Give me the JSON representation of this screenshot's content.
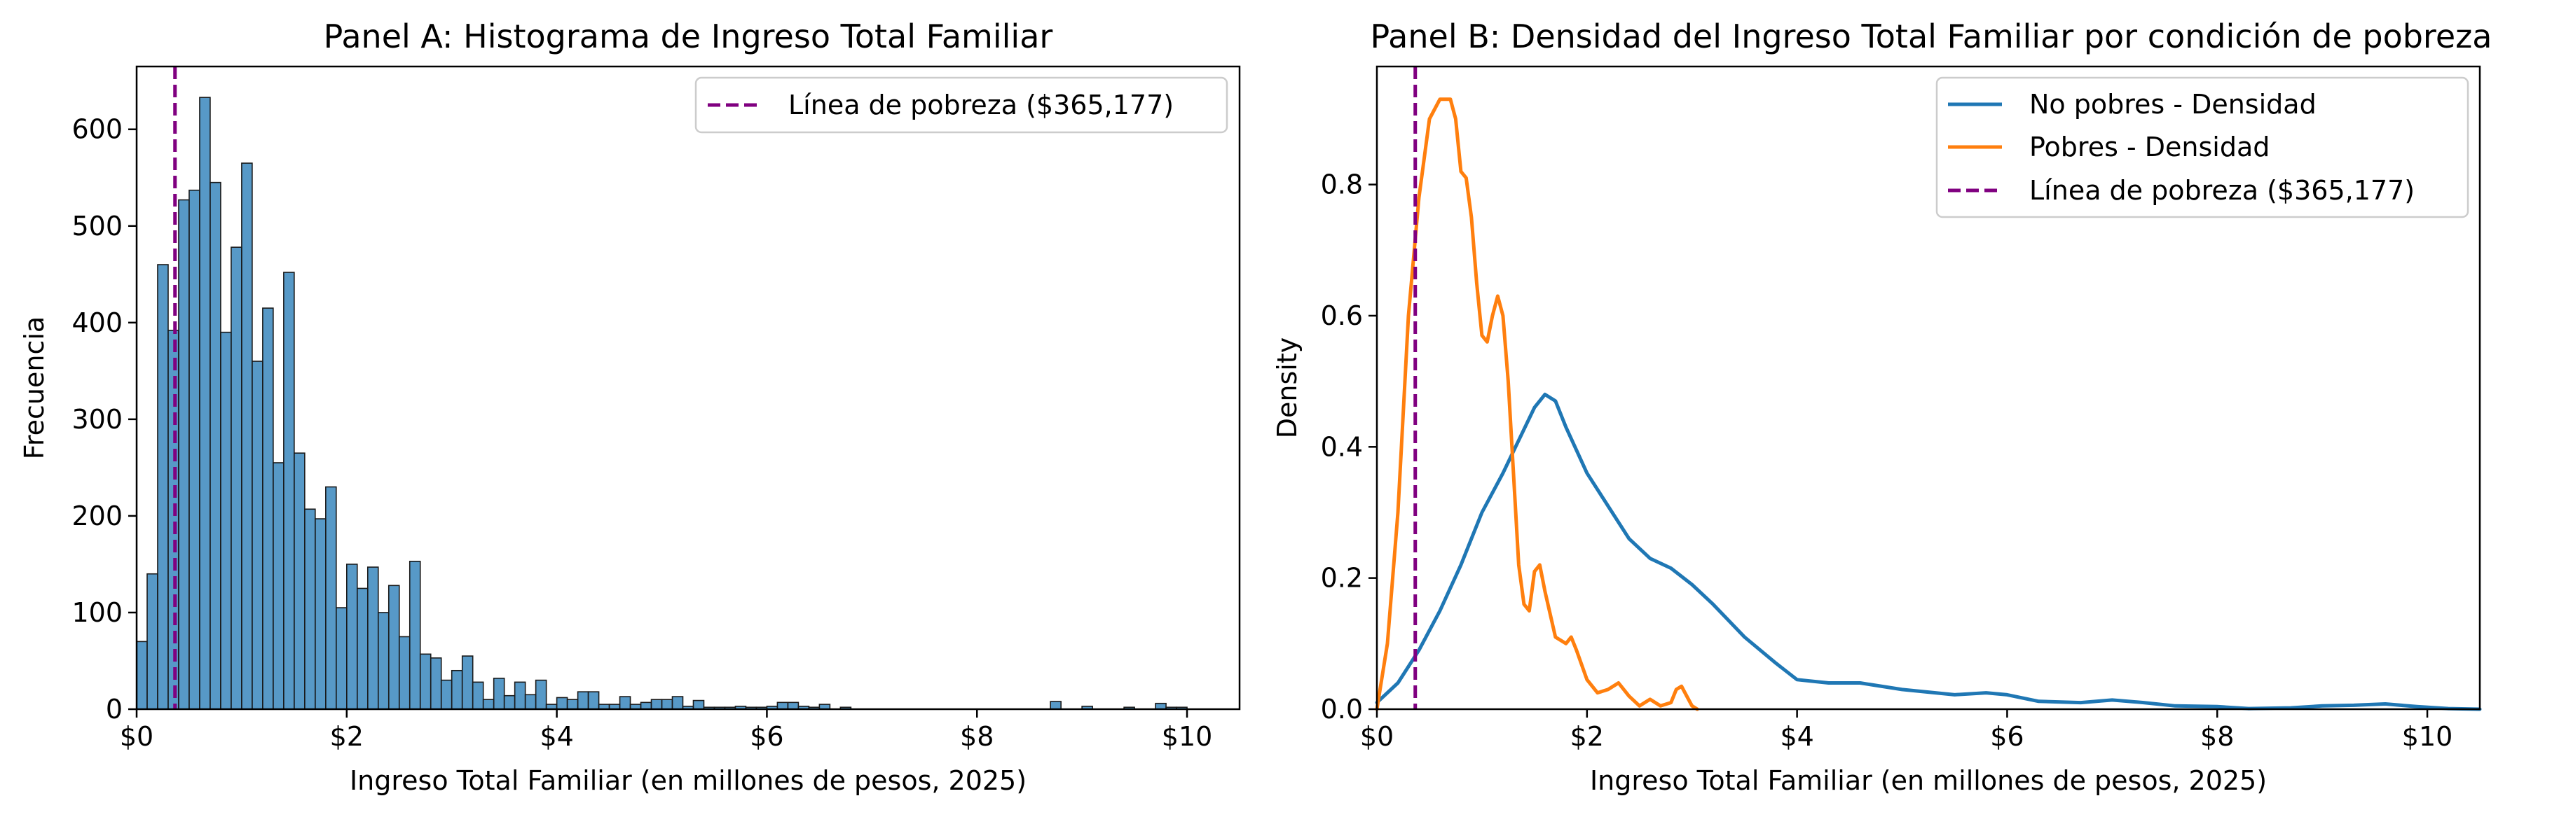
{
  "chart_data": [
    {
      "type": "bar",
      "title": "Panel A: Histograma de Ingreso Total Familiar",
      "xlabel": "Ingreso Total Familiar (en millones de pesos, 2025)",
      "ylabel": "Frecuencia",
      "xlim": [
        0,
        10.5
      ],
      "ylim": [
        0,
        665
      ],
      "xticks": [
        0,
        2,
        4,
        6,
        8,
        10
      ],
      "xtick_labels": [
        "$0",
        "$2",
        "$4",
        "$6",
        "$8",
        "$10"
      ],
      "yticks": [
        0,
        100,
        200,
        300,
        400,
        500,
        600
      ],
      "ytick_labels": [
        "0",
        "100",
        "200",
        "300",
        "400",
        "500",
        "600"
      ],
      "bin_start": 0,
      "bin_width": 0.1,
      "counts": [
        70,
        140,
        460,
        392,
        527,
        537,
        633,
        545,
        390,
        478,
        565,
        360,
        415,
        255,
        452,
        265,
        207,
        197,
        230,
        105,
        150,
        125,
        147,
        100,
        128,
        75,
        153,
        57,
        53,
        30,
        40,
        55,
        28,
        10,
        32,
        14,
        28,
        15,
        30,
        5,
        12,
        10,
        18,
        18,
        5,
        5,
        13,
        5,
        7,
        10,
        10,
        13,
        3,
        9,
        2,
        2,
        2,
        3,
        2,
        2,
        3,
        7,
        7,
        3,
        2,
        5,
        0,
        2,
        0,
        0,
        0,
        0,
        0,
        0,
        0,
        0,
        0,
        0,
        0,
        0,
        0,
        0,
        0,
        0,
        0,
        0,
        0,
        8,
        0,
        0,
        3,
        0,
        0,
        0,
        2,
        0,
        0,
        6,
        2,
        2
      ],
      "bar_color": "#1f77b4",
      "vline": {
        "x": 0.365177,
        "label": "Línea de pobreza ($365,177)",
        "color": "#800080",
        "style": "dashed"
      },
      "legend_position": "upper right"
    },
    {
      "type": "line",
      "title": "Panel B: Densidad del Ingreso Total Familiar por condición de pobreza",
      "xlabel": "Ingreso Total Familiar (en millones de pesos, 2025)",
      "ylabel": "Density",
      "xlim": [
        0,
        10.5
      ],
      "ylim": [
        0,
        0.98
      ],
      "xticks": [
        0,
        2,
        4,
        6,
        8,
        10
      ],
      "xtick_labels": [
        "$0",
        "$2",
        "$4",
        "$6",
        "$8",
        "$10"
      ],
      "yticks": [
        0,
        0.2,
        0.4,
        0.6,
        0.8
      ],
      "ytick_labels": [
        "0.0",
        "0.2",
        "0.4",
        "0.6",
        "0.8"
      ],
      "series": [
        {
          "name": "No pobres - Densidad",
          "color": "#1f77b4",
          "points": [
            [
              0,
              0.01
            ],
            [
              0.2,
              0.04
            ],
            [
              0.4,
              0.09
            ],
            [
              0.6,
              0.15
            ],
            [
              0.8,
              0.22
            ],
            [
              1.0,
              0.3
            ],
            [
              1.2,
              0.36
            ],
            [
              1.35,
              0.41
            ],
            [
              1.5,
              0.46
            ],
            [
              1.6,
              0.48
            ],
            [
              1.7,
              0.47
            ],
            [
              1.8,
              0.43
            ],
            [
              2.0,
              0.36
            ],
            [
              2.2,
              0.31
            ],
            [
              2.4,
              0.26
            ],
            [
              2.6,
              0.23
            ],
            [
              2.8,
              0.215
            ],
            [
              3.0,
              0.19
            ],
            [
              3.2,
              0.16
            ],
            [
              3.5,
              0.11
            ],
            [
              3.8,
              0.07
            ],
            [
              4.0,
              0.045
            ],
            [
              4.3,
              0.04
            ],
            [
              4.6,
              0.04
            ],
            [
              5.0,
              0.03
            ],
            [
              5.5,
              0.022
            ],
            [
              5.8,
              0.025
            ],
            [
              6.0,
              0.022
            ],
            [
              6.3,
              0.012
            ],
            [
              6.7,
              0.01
            ],
            [
              7.0,
              0.014
            ],
            [
              7.3,
              0.01
            ],
            [
              7.6,
              0.005
            ],
            [
              8.0,
              0.004
            ],
            [
              8.3,
              0.001
            ],
            [
              8.7,
              0.002
            ],
            [
              9.0,
              0.005
            ],
            [
              9.3,
              0.006
            ],
            [
              9.6,
              0.008
            ],
            [
              9.9,
              0.004
            ],
            [
              10.2,
              0.001
            ],
            [
              10.5,
              0.0
            ]
          ]
        },
        {
          "name": "Pobres - Densidad",
          "color": "#ff7f0e",
          "points": [
            [
              0,
              0.0
            ],
            [
              0.1,
              0.1
            ],
            [
              0.2,
              0.3
            ],
            [
              0.3,
              0.6
            ],
            [
              0.4,
              0.78
            ],
            [
              0.5,
              0.9
            ],
            [
              0.6,
              0.93
            ],
            [
              0.7,
              0.93
            ],
            [
              0.75,
              0.9
            ],
            [
              0.8,
              0.82
            ],
            [
              0.85,
              0.81
            ],
            [
              0.9,
              0.75
            ],
            [
              0.95,
              0.65
            ],
            [
              1.0,
              0.57
            ],
            [
              1.05,
              0.56
            ],
            [
              1.1,
              0.6
            ],
            [
              1.15,
              0.63
            ],
            [
              1.2,
              0.6
            ],
            [
              1.25,
              0.5
            ],
            [
              1.3,
              0.36
            ],
            [
              1.35,
              0.22
            ],
            [
              1.4,
              0.16
            ],
            [
              1.45,
              0.15
            ],
            [
              1.5,
              0.21
            ],
            [
              1.55,
              0.22
            ],
            [
              1.6,
              0.18
            ],
            [
              1.7,
              0.11
            ],
            [
              1.8,
              0.1
            ],
            [
              1.85,
              0.11
            ],
            [
              1.9,
              0.09
            ],
            [
              2.0,
              0.045
            ],
            [
              2.1,
              0.025
            ],
            [
              2.2,
              0.03
            ],
            [
              2.3,
              0.04
            ],
            [
              2.4,
              0.02
            ],
            [
              2.5,
              0.005
            ],
            [
              2.6,
              0.015
            ],
            [
              2.7,
              0.005
            ],
            [
              2.8,
              0.01
            ],
            [
              2.85,
              0.03
            ],
            [
              2.9,
              0.035
            ],
            [
              2.95,
              0.02
            ],
            [
              3.0,
              0.005
            ],
            [
              3.05,
              0.0
            ]
          ]
        }
      ],
      "vline": {
        "x": 0.365177,
        "label": "Línea de pobreza ($365,177)",
        "color": "#800080",
        "style": "dashed"
      },
      "legend_position": "upper right"
    }
  ]
}
